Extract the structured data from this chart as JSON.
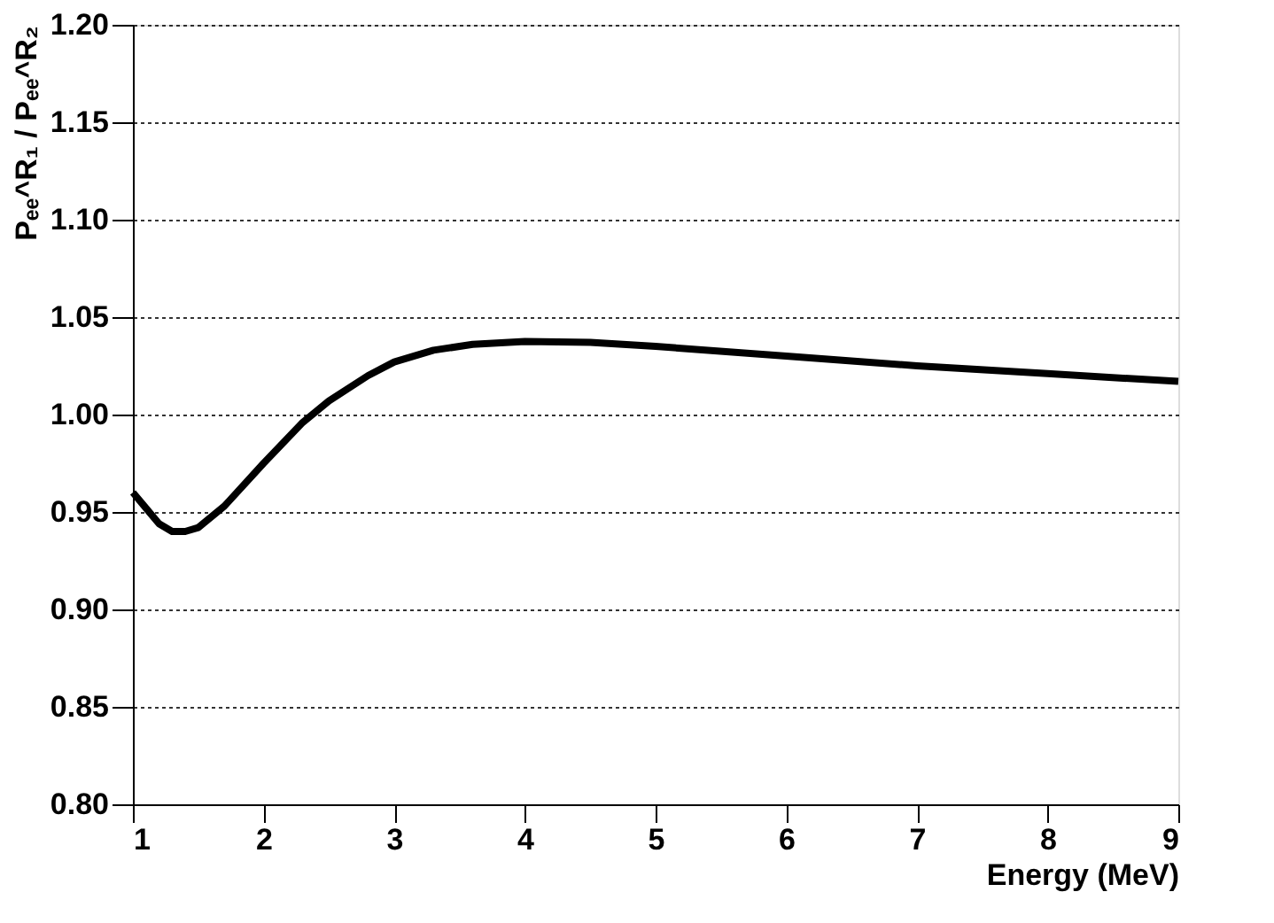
{
  "chart_data": {
    "type": "line",
    "xlabel": "Energy (MeV)",
    "ylabel": "Pₑₑ^R₁ / Pₑₑ^R₂",
    "x": [
      1.0,
      1.1,
      1.2,
      1.3,
      1.4,
      1.5,
      1.7,
      2.0,
      2.3,
      2.5,
      2.8,
      3.0,
      3.3,
      3.6,
      4.0,
      4.5,
      5.0,
      6.0,
      7.0,
      8.0,
      9.0
    ],
    "series": [
      {
        "color": "#000000",
        "values": [
          0.96,
          0.952,
          0.944,
          0.94,
          0.94,
          0.942,
          0.953,
          0.975,
          0.996,
          1.007,
          1.02,
          1.027,
          1.033,
          1.036,
          1.0375,
          1.037,
          1.035,
          1.03,
          1.025,
          1.021,
          1.017
        ]
      }
    ],
    "xlim": [
      1,
      9
    ],
    "xticks": [
      1,
      2,
      3,
      4,
      5,
      6,
      7,
      8,
      9
    ],
    "ylim": [
      0.8,
      1.2
    ],
    "yticks": [
      {
        "value": 0.8,
        "label": "0.80"
      },
      {
        "value": 0.85,
        "label": "0.85"
      },
      {
        "value": 0.9,
        "label": "0.90"
      },
      {
        "value": 0.95,
        "label": "0.95"
      },
      {
        "value": 1.0,
        "label": "1.00"
      },
      {
        "value": 1.05,
        "label": "1.05"
      },
      {
        "value": 1.1,
        "label": "1.10"
      },
      {
        "value": 1.15,
        "label": "1.15"
      },
      {
        "value": 1.2,
        "label": "1.20"
      }
    ],
    "grid": "y",
    "line_style": "solid",
    "marker": "none"
  }
}
